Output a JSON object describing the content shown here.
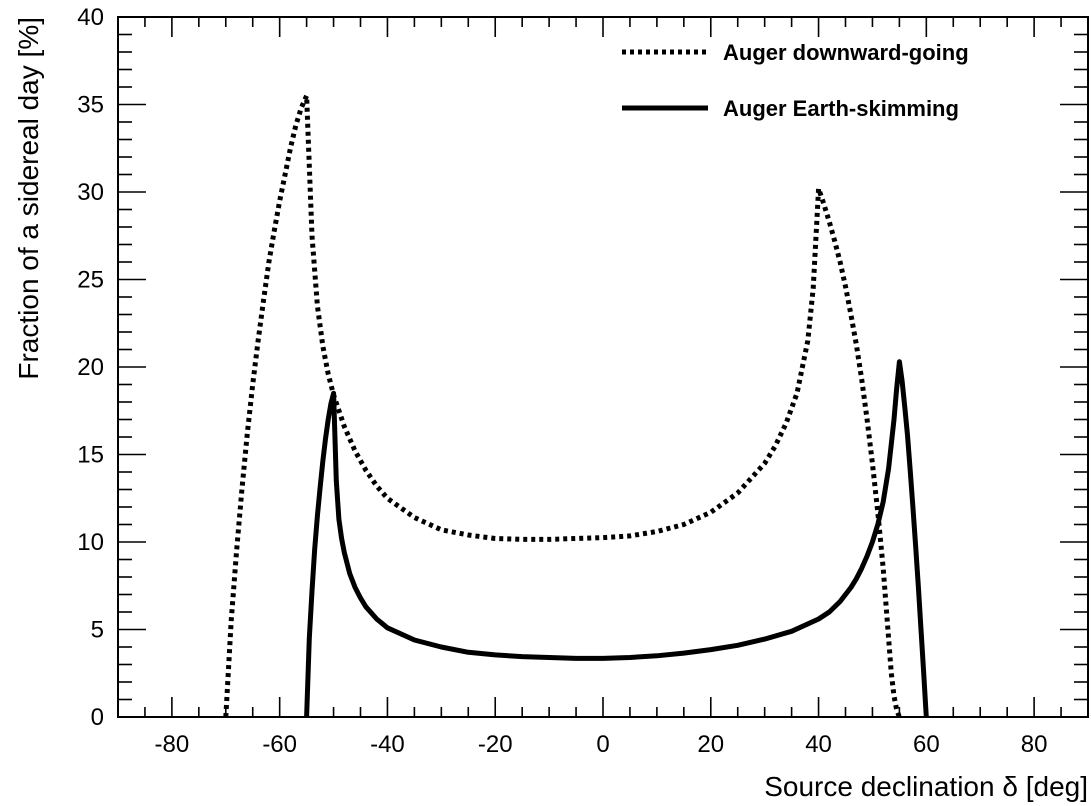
{
  "chart_data": {
    "type": "line",
    "xlabel": "Source declination δ [deg]",
    "ylabel": "Fraction of a sidereal day [%]",
    "xlim": [
      -90,
      90
    ],
    "ylim": [
      0,
      40
    ],
    "xticks": [
      -80,
      -60,
      -40,
      -20,
      0,
      20,
      40,
      60,
      80
    ],
    "yticks": [
      0,
      5,
      10,
      15,
      20,
      25,
      30,
      35,
      40
    ],
    "grid": false,
    "legend_position": "top-right",
    "series": [
      {
        "name": "Auger downward-going",
        "style": "dotted",
        "x": [
          -70,
          -69,
          -68,
          -67,
          -66,
          -65,
          -64,
          -63,
          -62,
          -61,
          -60,
          -59,
          -58,
          -57,
          -56,
          -55,
          -54,
          -53,
          -52,
          -51,
          -50,
          -48,
          -46,
          -44,
          -42,
          -40,
          -35,
          -30,
          -25,
          -20,
          -15,
          -10,
          -5,
          0,
          5,
          10,
          15,
          20,
          25,
          30,
          32,
          34,
          36,
          38,
          39,
          40,
          41,
          42,
          43,
          44,
          45,
          46,
          47,
          48,
          49,
          50,
          51,
          52,
          53,
          53.5,
          54,
          54.5,
          55
        ],
        "y": [
          0,
          5.5,
          9.5,
          13,
          16.2,
          19,
          21.5,
          23.8,
          26,
          27.8,
          29.5,
          31,
          32.5,
          33.8,
          34.8,
          35.5,
          27.5,
          23.5,
          21.2,
          19.6,
          18.4,
          16.6,
          15.2,
          14.1,
          13.2,
          12.5,
          11.4,
          10.7,
          10.4,
          10.2,
          10.15,
          10.15,
          10.2,
          10.25,
          10.35,
          10.6,
          11.0,
          11.7,
          12.8,
          14.5,
          15.5,
          16.8,
          18.5,
          21.5,
          24.5,
          30.2,
          29.3,
          28.3,
          27.2,
          26,
          24.6,
          23,
          21.3,
          19.3,
          17,
          14.5,
          11.7,
          8.5,
          4.5,
          2.5,
          1.2,
          0.4,
          0
        ]
      },
      {
        "name": "Auger Earth-skimming",
        "style": "solid",
        "x": [
          -55,
          -54.5,
          -54,
          -53.5,
          -53,
          -52.5,
          -52,
          -51.5,
          -51,
          -50.5,
          -50,
          -49.5,
          -49,
          -48.5,
          -48,
          -47,
          -46,
          -45,
          -44,
          -42,
          -40,
          -35,
          -30,
          -25,
          -20,
          -15,
          -10,
          -5,
          0,
          5,
          10,
          15,
          20,
          25,
          30,
          35,
          40,
          42,
          44,
          46,
          47,
          48,
          49,
          50,
          51,
          52,
          53,
          54,
          54.5,
          55,
          55.5,
          56,
          56.5,
          57,
          57.5,
          58,
          58.5,
          59,
          59.5,
          60
        ],
        "y": [
          0,
          4.5,
          7.2,
          9.6,
          11.5,
          13.1,
          14.6,
          15.9,
          17,
          17.9,
          18.5,
          13.5,
          11.3,
          10.2,
          9.4,
          8.2,
          7.4,
          6.8,
          6.3,
          5.6,
          5.1,
          4.4,
          4.0,
          3.7,
          3.55,
          3.45,
          3.4,
          3.35,
          3.35,
          3.4,
          3.5,
          3.65,
          3.85,
          4.1,
          4.45,
          4.9,
          5.6,
          6.0,
          6.6,
          7.4,
          7.9,
          8.5,
          9.2,
          10.0,
          11.0,
          12.3,
          14.2,
          17.0,
          18.8,
          20.3,
          19.2,
          17.7,
          16.1,
          14.1,
          12,
          9.8,
          7.5,
          5.1,
          2.6,
          0
        ]
      }
    ]
  }
}
